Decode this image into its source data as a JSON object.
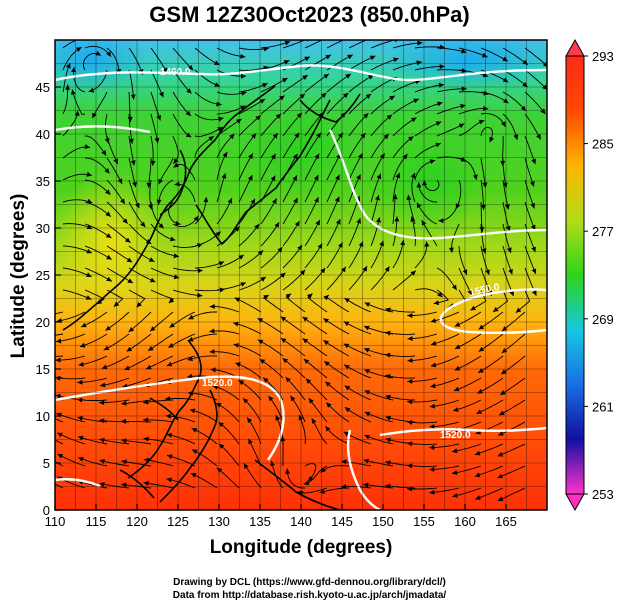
{
  "title": "GSM 12Z30Oct2023 (850.0hPa)",
  "axes": {
    "x_label": "Longitude (degrees)",
    "y_label": "Latitude  (degrees)",
    "x_ticks": [
      "110",
      "115",
      "120",
      "125",
      "130",
      "135",
      "140",
      "145",
      "150",
      "155",
      "160",
      "165"
    ],
    "y_ticks": [
      "0",
      "5",
      "10",
      "15",
      "20",
      "25",
      "30",
      "35",
      "40",
      "45"
    ],
    "x_range": [
      110,
      170
    ],
    "y_range": [
      0,
      50
    ]
  },
  "colorbar": {
    "labels": [
      "293",
      "285",
      "277",
      "269",
      "261",
      "253"
    ],
    "range": [
      253,
      293
    ],
    "stops": [
      "#ff33cc",
      "#1010a0",
      "#1a6ee6",
      "#16c8e0",
      "#2ed41a",
      "#b4dc18",
      "#ffb400",
      "#ff4a00",
      "#ff2a1a"
    ]
  },
  "contour_labels": [
    "1460.0",
    "1550.0",
    "1520.0",
    "1520.0"
  ],
  "credits": {
    "line1": "Drawing by DCL (https://www.gfd-dennou.org/library/dcl/)",
    "line2": "Data from http://database.rish.kyoto-u.ac.jp/arch/jmadata/"
  }
}
